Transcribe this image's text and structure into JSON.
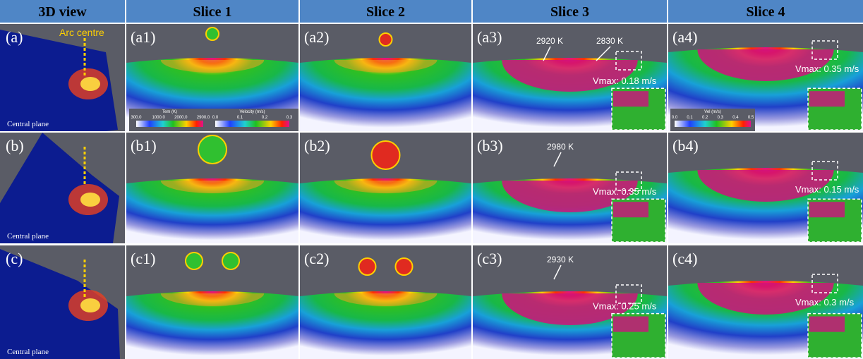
{
  "header": {
    "columns": [
      "3D view",
      "Slice 1",
      "Slice 2",
      "Slice 3",
      "Slice 4"
    ]
  },
  "rows": [
    {
      "view": {
        "label": "(a)",
        "marker": "Arc centre",
        "caption": "Central plane"
      },
      "slices": [
        {
          "label": "(a1)"
        },
        {
          "label": "(a2)"
        },
        {
          "label": "(a3)",
          "callouts": [
            "2920 K",
            "2830 K"
          ],
          "vmax": "Vmax: 0.18 m/s"
        },
        {
          "label": "(a4)",
          "vmax": "Vmax: 0.35 m/s"
        }
      ]
    },
    {
      "view": {
        "label": "(b)",
        "caption": "Central plane"
      },
      "slices": [
        {
          "label": "(b1)"
        },
        {
          "label": "(b2)"
        },
        {
          "label": "(b3)",
          "callouts": [
            "2980 K"
          ],
          "vmax": "Vmax: 0.35 m/s"
        },
        {
          "label": "(b4)",
          "vmax": "Vmax: 0.15 m/s"
        }
      ]
    },
    {
      "view": {
        "label": "(c)",
        "caption": "Central plane"
      },
      "slices": [
        {
          "label": "(c1)"
        },
        {
          "label": "(c2)"
        },
        {
          "label": "(c3)",
          "callouts": [
            "2930 K"
          ],
          "vmax": "Vmax: 0.25 m/s"
        },
        {
          "label": "(c4)",
          "vmax": "Vmax: 0.3 m/s"
        }
      ]
    }
  ],
  "legends": {
    "temperature": {
      "title": "Tem (K)",
      "ticks": [
        "300.0",
        "1000.0",
        "2000.0",
        "2900.0"
      ]
    },
    "velocity": {
      "title": "Velocity (m/s)",
      "ticks": [
        "0.0",
        "0.1",
        "0.2",
        "0.3"
      ]
    },
    "velocity_slice4": {
      "title": "Vel (m/s)",
      "ticks": [
        "0.0",
        "0.1",
        "0.2",
        "0.3",
        "0.4",
        "0.5"
      ]
    }
  }
}
